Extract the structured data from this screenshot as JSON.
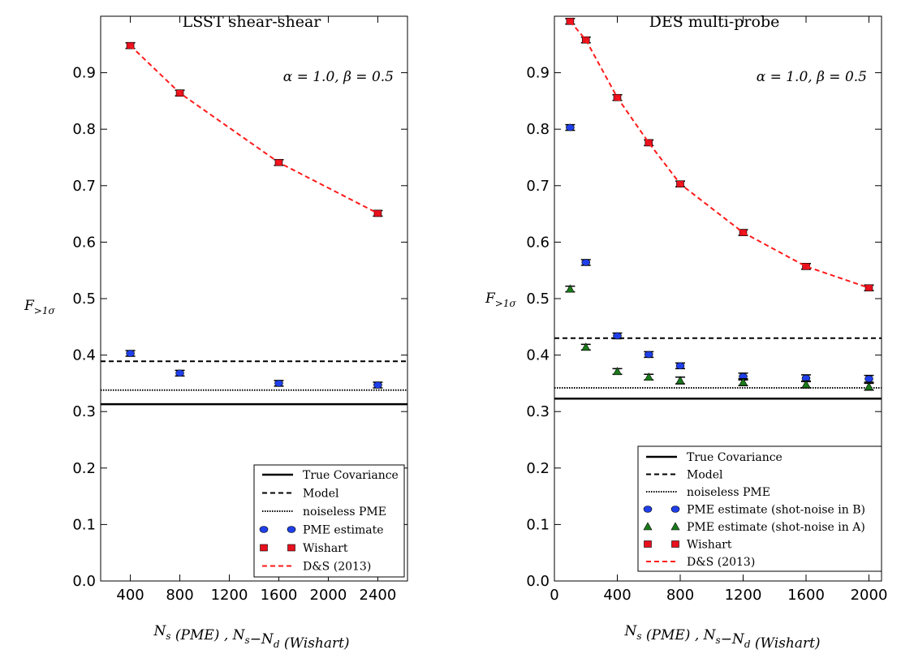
{
  "chart_data": [
    {
      "type": "scatter",
      "title": "LSST shear-shear",
      "xlabel": "N_s (PME) , N_s−N_d (Wishart)",
      "ylabel": "F_>1σ",
      "annotation": "α = 1.0, β = 0.5",
      "xlim": [
        160,
        2640
      ],
      "ylim": [
        0.0,
        1.0
      ],
      "xticks": [
        400,
        800,
        1200,
        1600,
        2000,
        2400
      ],
      "yticks": [
        0.0,
        0.1,
        0.2,
        0.3,
        0.4,
        0.5,
        0.6,
        0.7,
        0.8,
        0.9
      ],
      "legend_position": "lower-right",
      "hlines": [
        {
          "name": "True Covariance",
          "y": 0.313,
          "style": "solid",
          "color": "#000000"
        },
        {
          "name": "Model",
          "y": 0.389,
          "style": "dashed",
          "color": "#000000"
        },
        {
          "name": "noiseless PME",
          "y": 0.338,
          "style": "dotted",
          "color": "#000000"
        }
      ],
      "series": [
        {
          "name": "PME estimate",
          "marker": "circle",
          "color": "#1f3fe8",
          "x": [
            400,
            800,
            1600,
            2400
          ],
          "y": [
            0.403,
            0.368,
            0.35,
            0.347
          ],
          "err": [
            0.005,
            0.005,
            0.005,
            0.005
          ]
        },
        {
          "name": "Wishart",
          "marker": "square",
          "color": "#e8101e",
          "x": [
            400,
            800,
            1600,
            2400
          ],
          "y": [
            0.948,
            0.864,
            0.741,
            0.651
          ],
          "err": [
            0.005,
            0.005,
            0.005,
            0.005
          ]
        },
        {
          "name": "D&S (2013)",
          "line": "dashed",
          "color": "#ff1a1a",
          "x": [
            400,
            800,
            1600,
            2400
          ],
          "y": [
            0.948,
            0.864,
            0.741,
            0.651
          ]
        }
      ]
    },
    {
      "type": "scatter",
      "title": "DES multi-probe",
      "xlabel": "N_s (PME) , N_s−N_d (Wishart)",
      "ylabel": "F_>1σ",
      "annotation": "α = 1.0, β = 0.5",
      "xlim": [
        0,
        2080
      ],
      "ylim": [
        0.0,
        1.0
      ],
      "xticks": [
        0,
        400,
        800,
        1200,
        1600,
        2000
      ],
      "yticks": [
        0.0,
        0.1,
        0.2,
        0.3,
        0.4,
        0.5,
        0.6,
        0.7,
        0.8,
        0.9
      ],
      "legend_position": "lower-right",
      "hlines": [
        {
          "name": "True Covariance",
          "y": 0.323,
          "style": "solid",
          "color": "#000000"
        },
        {
          "name": "Model",
          "y": 0.43,
          "style": "dashed",
          "color": "#000000"
        },
        {
          "name": "noiseless PME",
          "y": 0.342,
          "style": "dotted",
          "color": "#000000"
        }
      ],
      "series": [
        {
          "name": "PME estimate (shot-noise in B)",
          "marker": "circle",
          "color": "#1f3fe8",
          "x": [
            100,
            200,
            400,
            600,
            800,
            1200,
            1600,
            2000
          ],
          "y": [
            0.803,
            0.564,
            0.434,
            0.401,
            0.381,
            0.362,
            0.359,
            0.358
          ],
          "err": [
            0.005,
            0.005,
            0.005,
            0.005,
            0.005,
            0.006,
            0.006,
            0.006
          ]
        },
        {
          "name": "PME estimate (shot-noise in A)",
          "marker": "triangle",
          "color": "#1a7a1a",
          "x": [
            100,
            200,
            400,
            600,
            800,
            1200,
            1600,
            2000
          ],
          "y": [
            0.517,
            0.414,
            0.371,
            0.361,
            0.355,
            0.352,
            0.348,
            0.344
          ],
          "err": [
            0.005,
            0.005,
            0.005,
            0.005,
            0.006,
            0.006,
            0.006,
            0.006
          ]
        },
        {
          "name": "Wishart",
          "marker": "square",
          "color": "#e8101e",
          "x": [
            100,
            200,
            400,
            600,
            800,
            1200,
            1600,
            2000
          ],
          "y": [
            0.991,
            0.958,
            0.856,
            0.776,
            0.703,
            0.617,
            0.557,
            0.519
          ],
          "err": [
            0.005,
            0.005,
            0.005,
            0.005,
            0.005,
            0.005,
            0.005,
            0.005
          ]
        },
        {
          "name": "D&S (2013)",
          "line": "dashed",
          "color": "#ff1a1a",
          "x": [
            100,
            200,
            400,
            600,
            800,
            1200,
            1600,
            2000
          ],
          "y": [
            0.991,
            0.958,
            0.856,
            0.776,
            0.703,
            0.617,
            0.557,
            0.519
          ]
        }
      ]
    }
  ]
}
